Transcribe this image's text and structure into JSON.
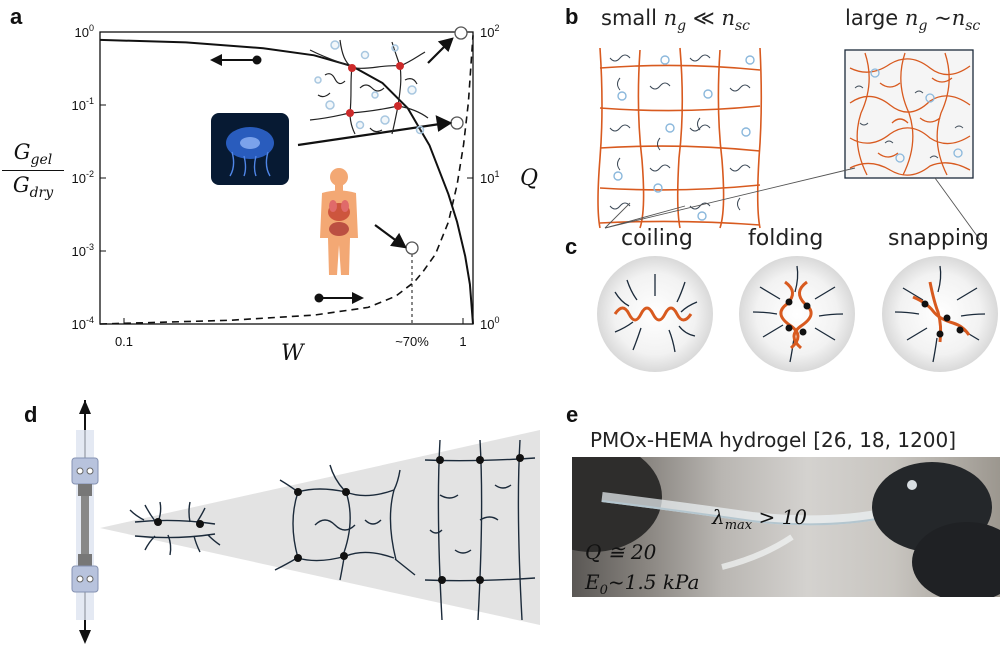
{
  "panels": {
    "a": {
      "letter": "a",
      "y_left_ticks": [
        "10^0",
        "10^-1",
        "10^-2",
        "10^-3",
        "10^-4"
      ],
      "y_right_ticks": [
        "10^2",
        "10^1",
        "10^0"
      ],
      "x_ticks": [
        "0.1",
        "~70%",
        "1"
      ],
      "xlabel": "W",
      "ylabel_left_num": "G_gel",
      "ylabel_left_den": "G_dry",
      "ylabel_right": "Q",
      "icons": [
        "jellyfish-photo",
        "human-organs-icon",
        "polymer-network-icon"
      ]
    },
    "b": {
      "letter": "b",
      "small_label": "small n_g ≪ n_sc",
      "large_label": "large n_g ~n_sc"
    },
    "c": {
      "letter": "c",
      "items": [
        "coiling",
        "folding",
        "snapping"
      ]
    },
    "d": {
      "letter": "d"
    },
    "e": {
      "letter": "e",
      "title": "PMOx-HEMA hydrogel [26, 18, 1200]",
      "annotations": {
        "lambda": "λ_max > 10",
        "Q": "Q ≅ 20",
        "E0": "E_0 ~1.5 kPa"
      }
    }
  },
  "chart_data": {
    "type": "line",
    "xscale": "log",
    "x_ticks": [
      "0.1",
      "1"
    ],
    "xlabel": "W",
    "ylabel": "G_gel / G_dry",
    "y2label": "Q",
    "ylim": [
      0.0001,
      1
    ],
    "y2lim": [
      1,
      100
    ],
    "yscale": "log",
    "y2scale": "log",
    "series": [
      {
        "axis": "left",
        "style": "solid",
        "x": [
          0.085,
          0.15,
          0.25,
          0.35,
          0.45,
          0.55,
          0.65,
          0.75,
          0.85,
          0.9,
          0.95,
          0.98,
          1.0
        ],
        "y": [
          0.78,
          0.72,
          0.6,
          0.48,
          0.34,
          0.2,
          0.09,
          0.028,
          0.006,
          0.0025,
          0.00085,
          0.00035,
          0.0001
        ]
      },
      {
        "axis": "right",
        "style": "dashed",
        "x": [
          0.085,
          0.2,
          0.35,
          0.5,
          0.6,
          0.68,
          0.72,
          0.78,
          0.85,
          0.9,
          0.94,
          0.97,
          1.0
        ],
        "y": [
          1.0,
          1.06,
          1.15,
          1.3,
          1.55,
          1.95,
          2.3,
          3.0,
          5.0,
          9.0,
          17.0,
          33.0,
          95.0
        ]
      }
    ],
    "markers": [
      {
        "label": "~70%",
        "x": 0.72,
        "y2": 2.3
      },
      {
        "x": 0.98,
        "y2": 33
      },
      {
        "x": 0.99,
        "y2": 100
      }
    ]
  }
}
